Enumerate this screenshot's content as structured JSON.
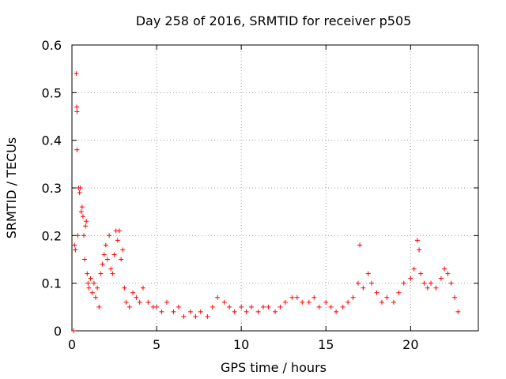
{
  "chart_data": {
    "type": "scatter",
    "title": "Day 258 of 2016, SRMTID for receiver p505",
    "xlabel": "GPS time / hours",
    "ylabel": "SRMTID / TECUs",
    "xlim": [
      0,
      24
    ],
    "ylim": [
      0,
      0.6
    ],
    "xticks": [
      0,
      5,
      10,
      15,
      20
    ],
    "yticks": [
      0,
      0.1,
      0.2,
      0.3,
      0.4,
      0.5,
      0.6
    ],
    "xtick_labels": [
      "0",
      "5",
      "10",
      "15",
      "20"
    ],
    "ytick_labels": [
      "0",
      "0.1",
      "0.2",
      "0.3",
      "0.4",
      "0.5",
      "0.6"
    ],
    "grid": true,
    "marker": "+",
    "series_color": "#ff0000",
    "series": [
      {
        "name": "SRMTID",
        "points": [
          [
            0.1,
            0.0
          ],
          [
            0.15,
            0.18
          ],
          [
            0.2,
            0.17
          ],
          [
            0.25,
            0.54
          ],
          [
            0.28,
            0.47
          ],
          [
            0.3,
            0.46
          ],
          [
            0.3,
            0.38
          ],
          [
            0.35,
            0.2
          ],
          [
            0.4,
            0.3
          ],
          [
            0.45,
            0.29
          ],
          [
            0.5,
            0.3
          ],
          [
            0.55,
            0.25
          ],
          [
            0.6,
            0.26
          ],
          [
            0.65,
            0.24
          ],
          [
            0.7,
            0.2
          ],
          [
            0.75,
            0.15
          ],
          [
            0.8,
            0.22
          ],
          [
            0.85,
            0.23
          ],
          [
            0.9,
            0.12
          ],
          [
            0.95,
            0.1
          ],
          [
            1.0,
            0.09
          ],
          [
            1.1,
            0.11
          ],
          [
            1.2,
            0.08
          ],
          [
            1.3,
            0.1
          ],
          [
            1.4,
            0.07
          ],
          [
            1.5,
            0.09
          ],
          [
            1.6,
            0.05
          ],
          [
            1.7,
            0.12
          ],
          [
            1.8,
            0.14
          ],
          [
            1.9,
            0.16
          ],
          [
            2.0,
            0.18
          ],
          [
            2.1,
            0.15
          ],
          [
            2.2,
            0.2
          ],
          [
            2.3,
            0.13
          ],
          [
            2.4,
            0.12
          ],
          [
            2.5,
            0.16
          ],
          [
            2.6,
            0.21
          ],
          [
            2.7,
            0.19
          ],
          [
            2.8,
            0.21
          ],
          [
            2.9,
            0.15
          ],
          [
            3.0,
            0.17
          ],
          [
            3.1,
            0.09
          ],
          [
            3.2,
            0.06
          ],
          [
            3.4,
            0.05
          ],
          [
            3.6,
            0.08
          ],
          [
            3.8,
            0.07
          ],
          [
            4.0,
            0.06
          ],
          [
            4.2,
            0.09
          ],
          [
            4.5,
            0.06
          ],
          [
            4.8,
            0.05
          ],
          [
            5.0,
            0.05
          ],
          [
            5.3,
            0.04
          ],
          [
            5.6,
            0.06
          ],
          [
            6.0,
            0.04
          ],
          [
            6.3,
            0.05
          ],
          [
            6.6,
            0.03
          ],
          [
            7.0,
            0.04
          ],
          [
            7.3,
            0.03
          ],
          [
            7.6,
            0.04
          ],
          [
            8.0,
            0.03
          ],
          [
            8.3,
            0.05
          ],
          [
            8.6,
            0.07
          ],
          [
            9.0,
            0.06
          ],
          [
            9.3,
            0.05
          ],
          [
            9.6,
            0.04
          ],
          [
            10.0,
            0.05
          ],
          [
            10.3,
            0.04
          ],
          [
            10.6,
            0.05
          ],
          [
            11.0,
            0.04
          ],
          [
            11.3,
            0.05
          ],
          [
            11.6,
            0.05
          ],
          [
            12.0,
            0.04
          ],
          [
            12.3,
            0.05
          ],
          [
            12.6,
            0.06
          ],
          [
            13.0,
            0.07
          ],
          [
            13.3,
            0.07
          ],
          [
            13.6,
            0.06
          ],
          [
            14.0,
            0.06
          ],
          [
            14.3,
            0.07
          ],
          [
            14.6,
            0.05
          ],
          [
            15.0,
            0.06
          ],
          [
            15.3,
            0.05
          ],
          [
            15.6,
            0.04
          ],
          [
            16.0,
            0.05
          ],
          [
            16.3,
            0.06
          ],
          [
            16.6,
            0.07
          ],
          [
            16.9,
            0.1
          ],
          [
            17.0,
            0.18
          ],
          [
            17.2,
            0.09
          ],
          [
            17.5,
            0.12
          ],
          [
            17.7,
            0.1
          ],
          [
            18.0,
            0.08
          ],
          [
            18.3,
            0.06
          ],
          [
            18.6,
            0.07
          ],
          [
            19.0,
            0.06
          ],
          [
            19.3,
            0.08
          ],
          [
            19.6,
            0.1
          ],
          [
            20.0,
            0.11
          ],
          [
            20.2,
            0.13
          ],
          [
            20.4,
            0.19
          ],
          [
            20.5,
            0.17
          ],
          [
            20.6,
            0.12
          ],
          [
            20.8,
            0.1
          ],
          [
            21.0,
            0.09
          ],
          [
            21.2,
            0.1
          ],
          [
            21.5,
            0.09
          ],
          [
            21.8,
            0.11
          ],
          [
            22.0,
            0.13
          ],
          [
            22.2,
            0.12
          ],
          [
            22.4,
            0.1
          ],
          [
            22.6,
            0.07
          ],
          [
            22.8,
            0.04
          ]
        ]
      }
    ]
  }
}
